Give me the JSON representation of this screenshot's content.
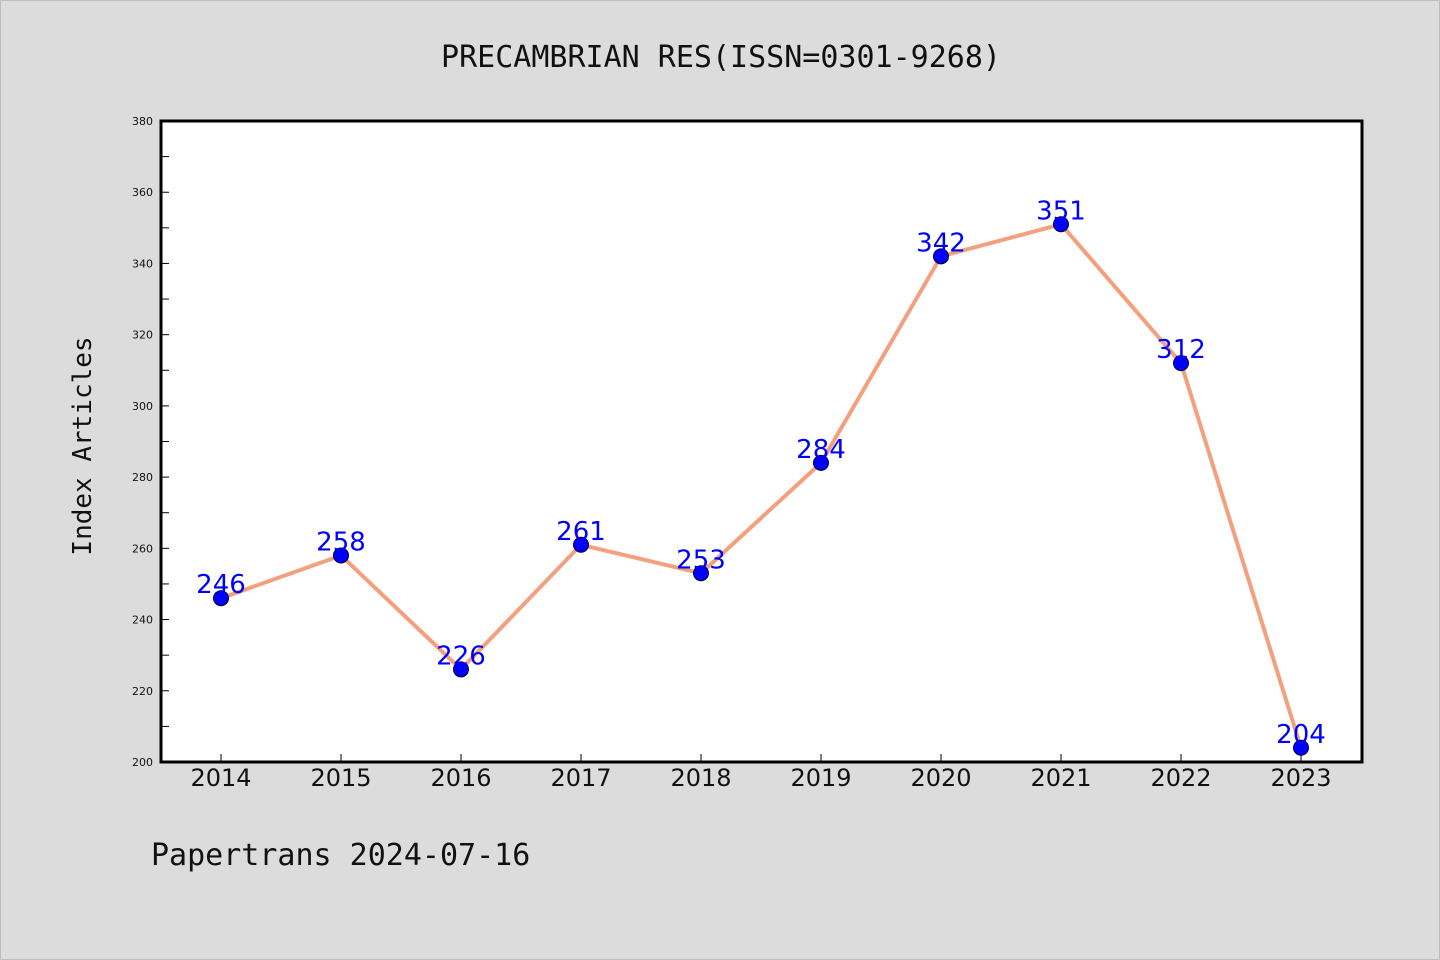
{
  "chart_data": {
    "type": "line",
    "title": "PRECAMBRIAN RES(ISSN=0301-9268)",
    "xlabel": "",
    "ylabel": "Index Articles",
    "categories": [
      "2014",
      "2015",
      "2016",
      "2017",
      "2018",
      "2019",
      "2020",
      "2021",
      "2022",
      "2023"
    ],
    "series": [
      {
        "values": [
          246,
          258,
          226,
          261,
          253,
          284,
          342,
          351,
          312,
          204
        ]
      }
    ],
    "ylim": [
      200,
      380
    ],
    "yticks": [
      "200",
      "220",
      "240",
      "260",
      "280",
      "300",
      "320",
      "340",
      "360",
      "380"
    ],
    "grid": false,
    "line_color": "#f4a07f",
    "marker_color": "#0000ff",
    "label_color": "#0000ff"
  },
  "footer": {
    "text": "Papertrans 2024-07-16"
  }
}
